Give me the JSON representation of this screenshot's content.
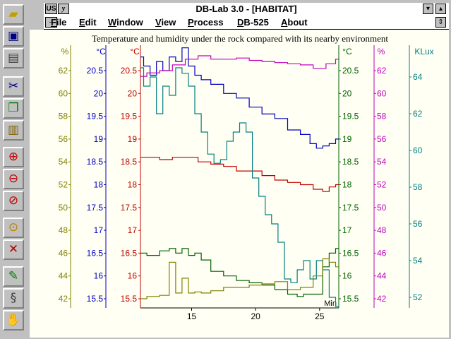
{
  "window": {
    "title": "DB-Lab 3.0 - [HABITAT]",
    "sys_label": "US",
    "sys_icon": "y-icon"
  },
  "menu": {
    "items": [
      {
        "id": "file",
        "label": "File"
      },
      {
        "id": "edit",
        "label": "Edit"
      },
      {
        "id": "window",
        "label": "Window"
      },
      {
        "id": "view",
        "label": "View"
      },
      {
        "id": "process",
        "label": "Process"
      },
      {
        "id": "db525",
        "label": "DB-525"
      },
      {
        "id": "about",
        "label": "About"
      }
    ]
  },
  "toolbar": {
    "tools": [
      "open-folder-icon",
      "save-disk-icon",
      "print-icon",
      "cut-scissors-icon",
      "copy-icon",
      "paste-clipboard-icon",
      "zoom-in-icon",
      "zoom-out-icon",
      "zoom-reset-icon",
      "axis-marker-icon",
      "axis-delete-icon",
      "run-figure-icon",
      "spring-icon",
      "stop-icon"
    ]
  },
  "chart_data": {
    "type": "line",
    "title": "Temperature and humidity under the rock compared with its nearby environment",
    "xlabel": "Min",
    "xlim": [
      11,
      26.5
    ],
    "xticks": [
      15,
      20,
      25
    ],
    "axes": [
      {
        "id": "hum-left",
        "unit": "%",
        "color": "#808000",
        "side": "left",
        "ticks": [
          42,
          44,
          46,
          48,
          50,
          52,
          54,
          56,
          58,
          60,
          62
        ],
        "range": [
          41.5,
          63.5
        ]
      },
      {
        "id": "temp-blue",
        "unit": "°C",
        "color": "#0000c0",
        "side": "left",
        "ticks": [
          15.5,
          16,
          16.5,
          17,
          17.5,
          18,
          18.5,
          19,
          19.5,
          20,
          20.5
        ],
        "range": [
          15.25,
          20.75
        ]
      },
      {
        "id": "temp-red",
        "unit": "°C",
        "color": "#c00000",
        "side": "left",
        "ticks": [
          15.5,
          16,
          16.5,
          17,
          17.5,
          18,
          18.5,
          19,
          19.5,
          20,
          20.5
        ],
        "range": [
          15.25,
          20.75
        ]
      },
      {
        "id": "temp-green",
        "unit": "°C",
        "color": "#006000",
        "side": "right",
        "ticks": [
          15.5,
          16,
          16.5,
          17,
          17.5,
          18,
          18.5,
          19,
          19.5,
          20,
          20.5
        ],
        "range": [
          15.25,
          20.75
        ]
      },
      {
        "id": "hum-right",
        "unit": "%",
        "color": "#c000c0",
        "side": "right",
        "ticks": [
          42,
          44,
          46,
          48,
          50,
          52,
          54,
          56,
          58,
          60,
          62
        ],
        "range": [
          41.5,
          63.5
        ]
      },
      {
        "id": "lux",
        "unit": "KLux",
        "color": "#008080",
        "side": "right",
        "ticks": [
          52,
          54,
          56,
          58,
          60,
          62,
          64
        ],
        "range": [
          51.3,
          65.5
        ]
      }
    ],
    "series": [
      {
        "id": "blue",
        "color": "#0000c0",
        "axis": "temp-blue",
        "x": [
          11,
          11.5,
          12,
          12.5,
          13,
          13.5,
          14,
          14.5,
          15,
          15.5,
          16,
          17,
          18,
          19,
          20,
          21,
          22,
          23,
          24,
          24.5,
          25,
          25.5,
          26,
          26.5
        ],
        "y": [
          20.8,
          20.6,
          20.4,
          20.7,
          20.5,
          20.8,
          20.7,
          21.0,
          20.6,
          20.4,
          20.3,
          20.2,
          20.0,
          19.9,
          19.7,
          19.55,
          19.45,
          19.2,
          19.1,
          18.9,
          18.8,
          18.85,
          18.9,
          19.0
        ]
      },
      {
        "id": "magenta",
        "color": "#c000c0",
        "axis": "hum-right",
        "x": [
          11,
          12,
          13,
          14,
          15,
          16,
          17,
          18,
          19,
          20,
          21,
          22,
          23,
          24,
          25,
          26,
          26.5
        ],
        "y": [
          61.5,
          61.8,
          62.0,
          62.5,
          63.0,
          63.3,
          63.0,
          63.0,
          63.1,
          62.9,
          62.8,
          62.7,
          62.6,
          62.5,
          62.2,
          62.6,
          63.0
        ]
      },
      {
        "id": "red",
        "color": "#c00000",
        "axis": "temp-red",
        "x": [
          11,
          12,
          13,
          14,
          15,
          16,
          17,
          18,
          19,
          20,
          21,
          22,
          23,
          24,
          25,
          25.5,
          26,
          26.5
        ],
        "y": [
          18.6,
          18.6,
          18.55,
          18.6,
          18.6,
          18.5,
          18.45,
          18.4,
          18.3,
          18.3,
          18.2,
          18.1,
          18.05,
          18.0,
          17.9,
          17.85,
          17.95,
          18.0
        ]
      },
      {
        "id": "teal",
        "color": "#008080",
        "axis": "lux",
        "x": [
          11,
          11.5,
          12,
          12.5,
          13,
          13.5,
          14,
          14.5,
          15,
          15.5,
          16,
          16.5,
          17,
          17.5,
          18,
          18.5,
          19,
          19.5,
          20,
          20.5,
          21,
          21.5,
          22,
          22.5,
          23,
          23.5,
          24,
          24.5,
          25,
          25.5,
          26,
          26.5
        ],
        "y": [
          64.5,
          63.5,
          64.0,
          62.0,
          63.5,
          63.0,
          64.5,
          64.2,
          63.5,
          62.0,
          61.0,
          59.8,
          59.3,
          59.5,
          60.5,
          61.0,
          61.5,
          61.0,
          58.5,
          57.5,
          56.5,
          56.0,
          55.0,
          53.0,
          52.8,
          53.5,
          54.0,
          53.0,
          54.0,
          53.5,
          52.0,
          51.5
        ]
      },
      {
        "id": "green",
        "color": "#006000",
        "axis": "temp-green",
        "x": [
          11,
          12,
          13,
          13.5,
          14,
          14.5,
          15,
          15.5,
          16,
          17,
          18,
          19,
          20,
          21,
          22,
          23,
          23.5,
          24,
          25,
          25.5,
          26,
          26.5
        ],
        "y": [
          16.5,
          16.45,
          16.55,
          16.6,
          16.5,
          16.6,
          16.45,
          16.5,
          16.35,
          16.1,
          16.0,
          15.9,
          15.85,
          15.8,
          15.7,
          15.6,
          15.55,
          15.6,
          15.6,
          16.2,
          16.5,
          16.6
        ]
      },
      {
        "id": "olive",
        "color": "#808000",
        "axis": "hum-left",
        "x": [
          11,
          12,
          13,
          13.5,
          14,
          14.5,
          15,
          15.5,
          16,
          17,
          18,
          19,
          20,
          21,
          22,
          23,
          24,
          25,
          25.5,
          26,
          26.5
        ],
        "y": [
          42.0,
          42.2,
          42.3,
          45.2,
          42.5,
          43.8,
          42.5,
          42.6,
          42.5,
          42.7,
          43.0,
          43.0,
          43.2,
          43.3,
          43.5,
          42.8,
          43.0,
          44.0,
          45.5,
          45.2,
          44.8
        ]
      }
    ]
  }
}
